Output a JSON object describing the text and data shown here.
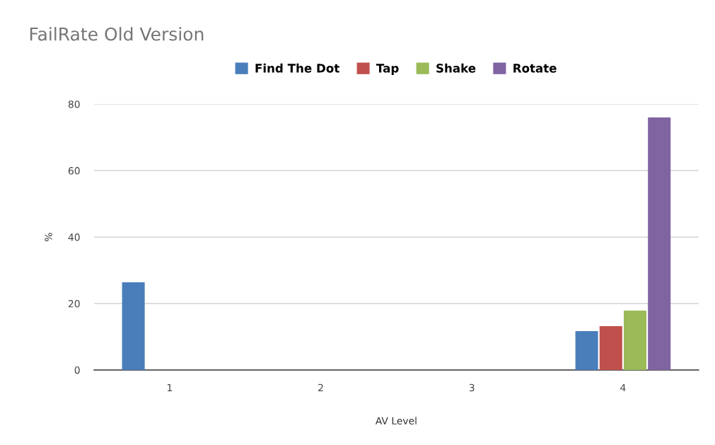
{
  "chart_data": {
    "type": "bar",
    "title": "FailRate Old Version",
    "xlabel": "AV Level",
    "ylabel": "%",
    "categories": [
      "1",
      "2",
      "3",
      "4"
    ],
    "series": [
      {
        "name": "Find The Dot",
        "color": "#4a7ebb",
        "values": [
          26.4,
          0,
          0,
          11.7
        ]
      },
      {
        "name": "Tap",
        "color": "#c0504d",
        "values": [
          0,
          0,
          0,
          13.2
        ]
      },
      {
        "name": "Shake",
        "color": "#9bbb59",
        "values": [
          0,
          0,
          0,
          17.9
        ]
      },
      {
        "name": "Rotate",
        "color": "#8064a2",
        "values": [
          0,
          0,
          0,
          76.0
        ]
      }
    ],
    "ylim": [
      0,
      80
    ],
    "yticks": [
      0,
      20,
      40,
      60,
      80
    ],
    "grid": "y",
    "legend": "top"
  }
}
